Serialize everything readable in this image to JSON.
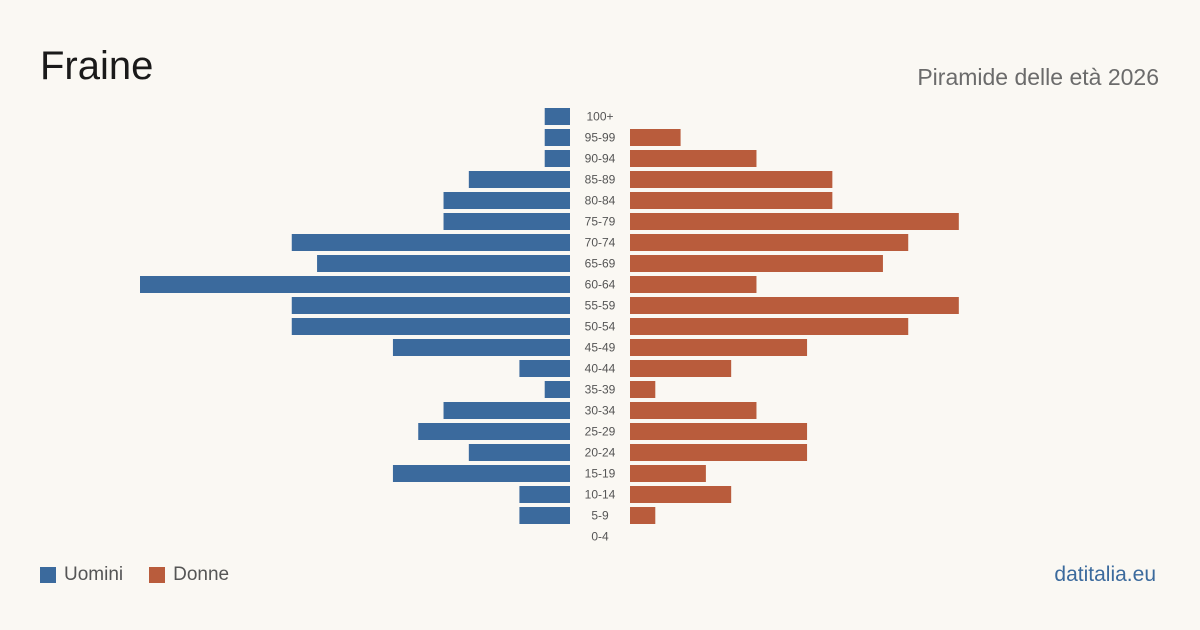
{
  "header": {
    "title": "Fraine",
    "subtitle": "Piramide delle età 2026"
  },
  "legend": {
    "male_label": "Uomini",
    "female_label": "Donne"
  },
  "brand": "datitalia.eu",
  "colors": {
    "male": "#3b6a9d",
    "female": "#b95c3c",
    "background": "#faf8f3",
    "label": "#555555"
  },
  "chart_data": {
    "type": "bar",
    "orientation": "horizontal",
    "layout": "population-pyramid",
    "categories": [
      "100+",
      "95-99",
      "90-94",
      "85-89",
      "80-84",
      "75-79",
      "70-74",
      "65-69",
      "60-64",
      "55-59",
      "50-54",
      "45-49",
      "40-44",
      "35-39",
      "30-34",
      "25-29",
      "20-24",
      "15-19",
      "10-14",
      "5-9",
      "0-4"
    ],
    "series": [
      {
        "name": "Uomini",
        "values": [
          1,
          1,
          1,
          4,
          5,
          5,
          11,
          10,
          17,
          11,
          11,
          7,
          2,
          1,
          5,
          6,
          4,
          7,
          2,
          2,
          0
        ]
      },
      {
        "name": "Donne",
        "values": [
          0,
          2,
          5,
          8,
          8,
          13,
          11,
          10,
          5,
          13,
          11,
          7,
          4,
          1,
          5,
          7,
          7,
          3,
          4,
          1,
          0
        ]
      }
    ],
    "xlim": [
      0,
      17
    ],
    "grid": false,
    "legend_position": "bottom-left"
  }
}
